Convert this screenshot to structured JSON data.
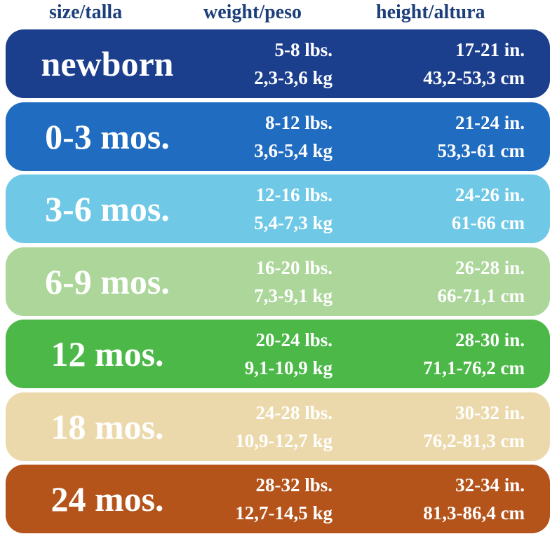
{
  "header": [
    "size/talla",
    "weight/peso",
    "height/altura"
  ],
  "rows": [
    {
      "size": "newborn",
      "weight_lbs": "5-8 lbs.",
      "weight_kg": "2,3-3,6 kg",
      "height_in": "17-21 in.",
      "height_cm": "43,2-53,3 cm"
    },
    {
      "size": "0-3 mos.",
      "weight_lbs": "8-12 lbs.",
      "weight_kg": "3,6-5,4 kg",
      "height_in": "21-24 in.",
      "height_cm": "53,3-61 cm"
    },
    {
      "size": "3-6 mos.",
      "weight_lbs": "12-16 lbs.",
      "weight_kg": "5,4-7,3 kg",
      "height_in": "24-26 in.",
      "height_cm": "61-66 cm"
    },
    {
      "size": "6-9 mos.",
      "weight_lbs": "16-20 lbs.",
      "weight_kg": "7,3-9,1 kg",
      "height_in": "26-28 in.",
      "height_cm": "66-71,1 cm"
    },
    {
      "size": "12 mos.",
      "weight_lbs": "20-24 lbs.",
      "weight_kg": "9,1-10,9 kg",
      "height_in": "28-30 in.",
      "height_cm": "71,1-76,2 cm"
    },
    {
      "size": "18 mos.",
      "weight_lbs": "24-28 lbs.",
      "weight_kg": "10,9-12,7 kg",
      "height_in": "30-32 in.",
      "height_cm": "76,2-81,3 cm"
    },
    {
      "size": "24 mos.",
      "weight_lbs": "28-32 lbs.",
      "weight_kg": "12,7-14,5 kg",
      "height_in": "32-34 in.",
      "height_cm": "81,3-86,4 cm"
    }
  ]
}
